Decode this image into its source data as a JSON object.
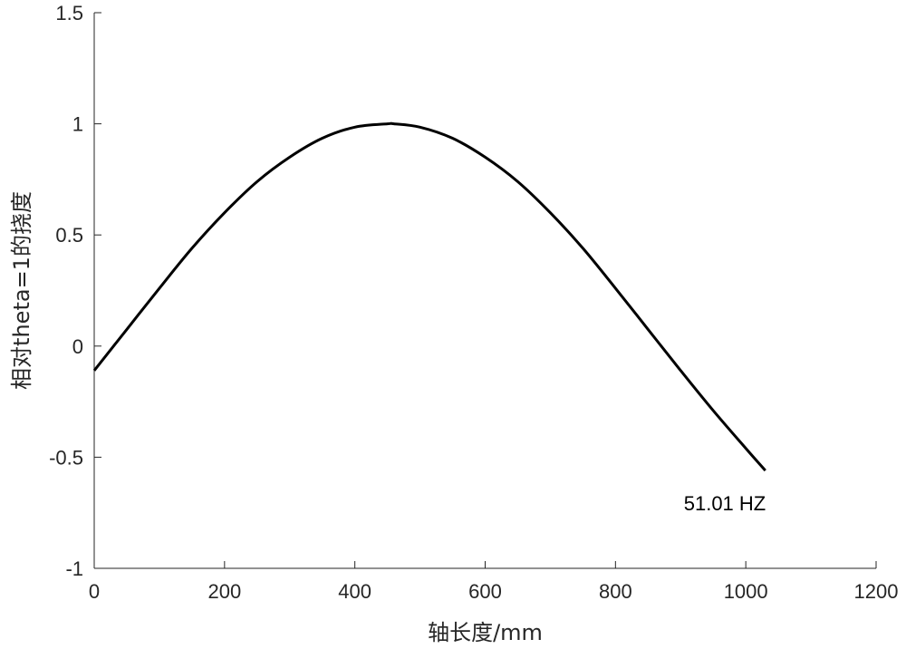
{
  "chart_data": {
    "type": "line",
    "xlabel": "轴长度/mm",
    "ylabel": "相对theta=1的挠度",
    "xlim": [
      0,
      1200
    ],
    "ylim": [
      -1,
      1.5
    ],
    "xticks": [
      0,
      200,
      400,
      600,
      800,
      1000,
      1200
    ],
    "xtick_labels": [
      "0",
      "200",
      "400",
      "600",
      "800",
      "1000",
      "1200"
    ],
    "yticks": [
      -1,
      -0.5,
      0,
      0.5,
      1,
      1.5
    ],
    "ytick_labels": [
      "-1",
      "-0.5",
      "0",
      "0.5",
      "1",
      "1.5"
    ],
    "grid": false,
    "series": [
      {
        "color": "#000000",
        "x": [
          0,
          50,
          100,
          150,
          200,
          250,
          300,
          350,
          400,
          450,
          460,
          500,
          550,
          600,
          650,
          700,
          750,
          800,
          850,
          900,
          950,
          1000,
          1030
        ],
        "y": [
          -0.11,
          0.075,
          0.26,
          0.44,
          0.6,
          0.74,
          0.85,
          0.935,
          0.985,
          1.0,
          1.0,
          0.985,
          0.935,
          0.85,
          0.74,
          0.6,
          0.44,
          0.26,
          0.075,
          -0.11,
          -0.29,
          -0.46,
          -0.56
        ]
      }
    ],
    "annotations": [
      {
        "text": "51.01 HZ",
        "x": 1030,
        "y": -0.56
      }
    ]
  }
}
